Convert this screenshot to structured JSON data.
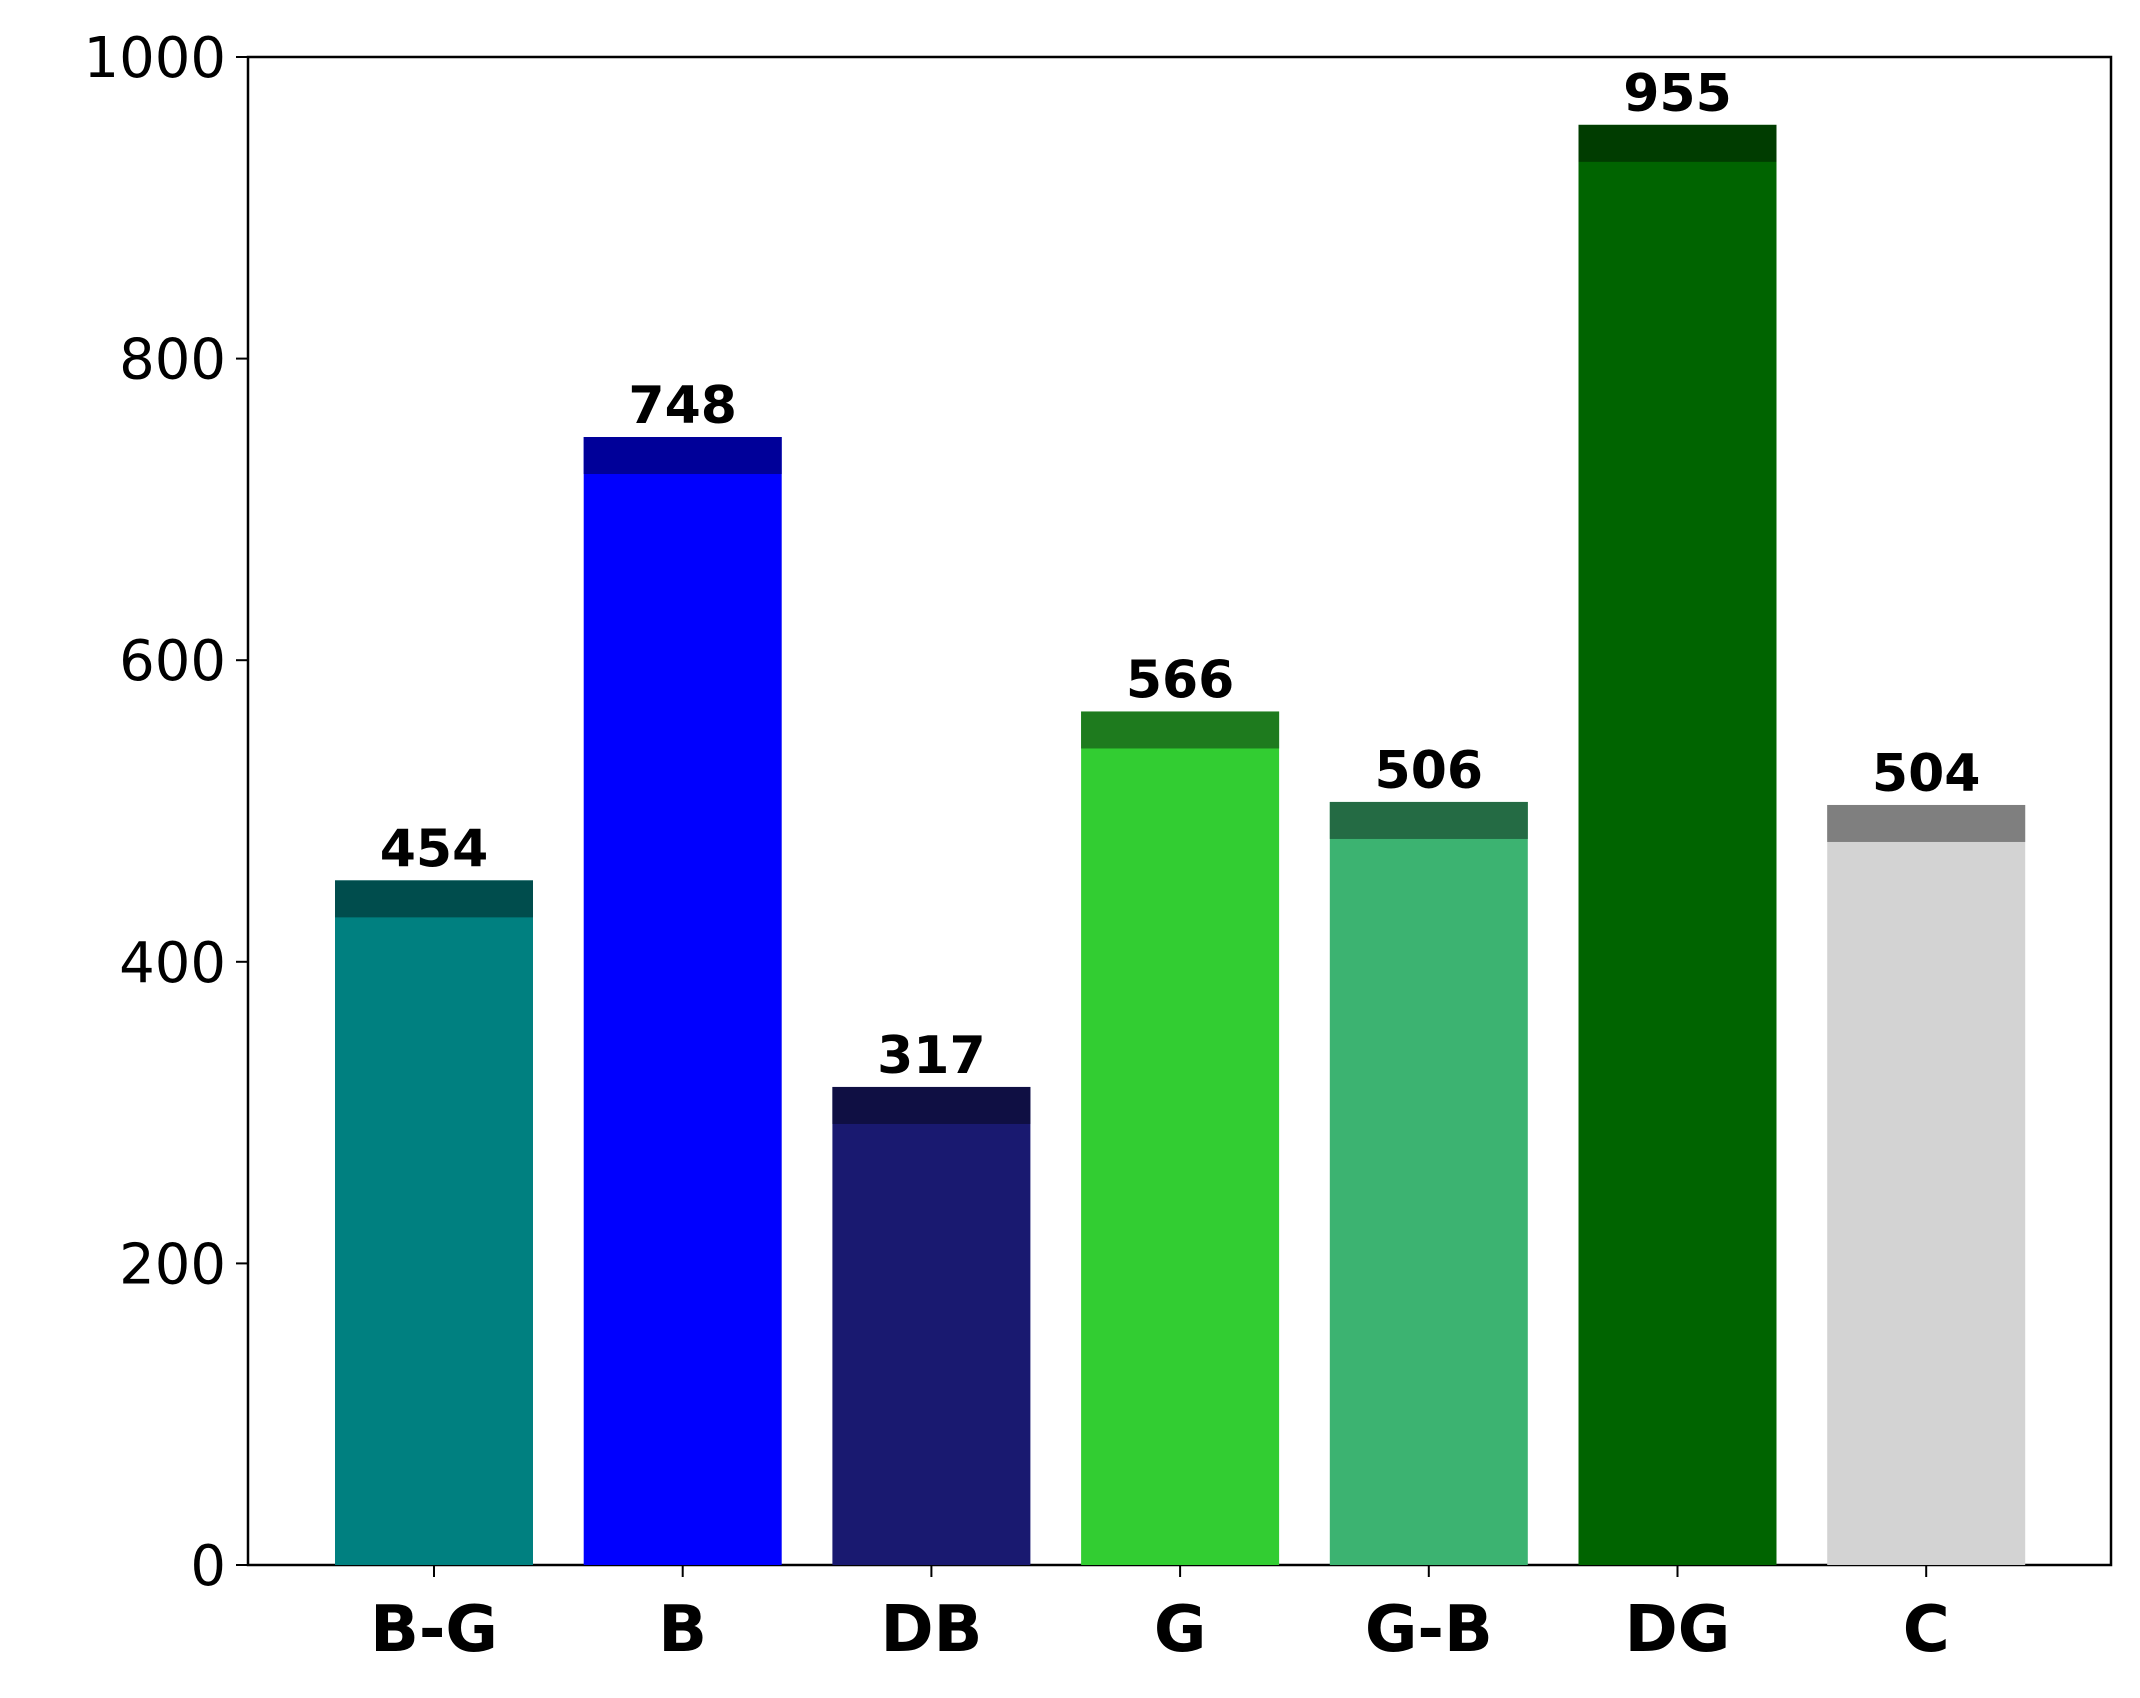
{
  "chart_data": {
    "type": "bar",
    "categories": [
      "B-G",
      "B",
      "DB",
      "G",
      "G-B",
      "DG",
      "C"
    ],
    "values": [
      454,
      748,
      317,
      566,
      506,
      955,
      504
    ],
    "colors": [
      "#008080",
      "#0000ff",
      "#191970",
      "#32cd32",
      "#3cb371",
      "#006400",
      "#d3d3d3"
    ],
    "ylim": [
      0,
      1000
    ],
    "yticks": [
      0,
      200,
      400,
      600,
      800,
      1000
    ],
    "grid": false
  }
}
